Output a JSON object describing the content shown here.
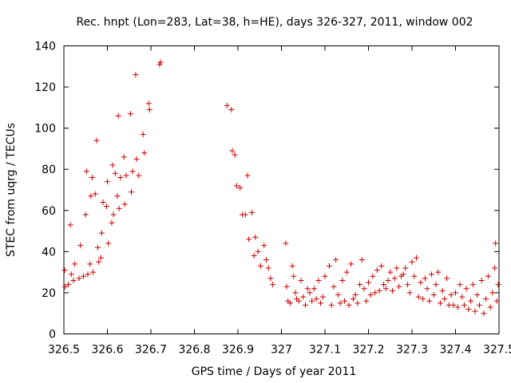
{
  "chart_data": {
    "type": "scatter",
    "title": "Rec. hnpt (Lon=283, Lat=38, h=HE), days 326-327, 2011, window 002",
    "xlabel": "GPS time / Days of year 2011",
    "ylabel": "STEC from uqrg / TECUs",
    "xlim": [
      326.5,
      327.5
    ],
    "ylim": [
      0,
      140
    ],
    "xticks": [
      326.5,
      326.6,
      326.7,
      326.8,
      326.9,
      327,
      327.1,
      327.2,
      327.3,
      327.4,
      327.5
    ],
    "xtick_labels": [
      "326.5",
      "326.6",
      "326.7",
      "326.8",
      "326.9",
      "327",
      "327.1",
      "327.2",
      "327.3",
      "327.4",
      "327.5"
    ],
    "yticks": [
      0,
      20,
      40,
      60,
      80,
      100,
      120,
      140
    ],
    "ytick_labels": [
      "0",
      "20",
      "40",
      "60",
      "80",
      "100",
      "120",
      "140"
    ],
    "grid": false,
    "marker": "+",
    "color": "#cc0000",
    "series": [
      {
        "points": [
          [
            326.502,
            31
          ],
          [
            326.503,
            23
          ],
          [
            326.51,
            24
          ],
          [
            326.515,
            53
          ],
          [
            326.517,
            29
          ],
          [
            326.522,
            26
          ],
          [
            326.525,
            34
          ],
          [
            326.535,
            27
          ],
          [
            326.538,
            43
          ],
          [
            326.545,
            28
          ],
          [
            326.55,
            58
          ],
          [
            326.552,
            79
          ],
          [
            326.555,
            29
          ],
          [
            326.56,
            34
          ],
          [
            326.562,
            67
          ],
          [
            326.565,
            76
          ],
          [
            326.567,
            30
          ],
          [
            326.572,
            68
          ],
          [
            326.575,
            94
          ],
          [
            326.578,
            42
          ],
          [
            326.58,
            35
          ],
          [
            326.585,
            37
          ],
          [
            326.587,
            49
          ],
          [
            326.59,
            64
          ],
          [
            326.598,
            62
          ],
          [
            326.6,
            74
          ],
          [
            326.602,
            44
          ],
          [
            326.61,
            54
          ],
          [
            326.612,
            82
          ],
          [
            326.614,
            58
          ],
          [
            326.618,
            78
          ],
          [
            326.623,
            67
          ],
          [
            326.625,
            106
          ],
          [
            326.627,
            61
          ],
          [
            326.63,
            76
          ],
          [
            326.638,
            86
          ],
          [
            326.64,
            63
          ],
          [
            326.643,
            77
          ],
          [
            326.653,
            107
          ],
          [
            326.655,
            69
          ],
          [
            326.658,
            79
          ],
          [
            326.665,
            126
          ],
          [
            326.667,
            85
          ],
          [
            326.672,
            77
          ],
          [
            326.682,
            97
          ],
          [
            326.685,
            88
          ],
          [
            326.695,
            112
          ],
          [
            326.697,
            109
          ],
          [
            326.72,
            131
          ],
          [
            326.722,
            132
          ],
          [
            326.875,
            111
          ],
          [
            326.885,
            109
          ],
          [
            326.887,
            89
          ],
          [
            326.893,
            87
          ],
          [
            326.897,
            72
          ],
          [
            326.905,
            71
          ],
          [
            326.91,
            58
          ],
          [
            326.917,
            58
          ],
          [
            326.922,
            77
          ],
          [
            326.925,
            46
          ],
          [
            326.932,
            59
          ],
          [
            326.937,
            38
          ],
          [
            326.94,
            47
          ],
          [
            326.946,
            40
          ],
          [
            326.952,
            33
          ],
          [
            326.96,
            43
          ],
          [
            326.965,
            36
          ],
          [
            326.97,
            32
          ],
          [
            326.975,
            27
          ],
          [
            326.98,
            24
          ],
          [
            327.01,
            44
          ],
          [
            327.012,
            23
          ],
          [
            327.015,
            16
          ],
          [
            327.02,
            15
          ],
          [
            327.025,
            33
          ],
          [
            327.028,
            28
          ],
          [
            327.032,
            20
          ],
          [
            327.035,
            17
          ],
          [
            327.04,
            16
          ],
          [
            327.045,
            26
          ],
          [
            327.05,
            18
          ],
          [
            327.055,
            14
          ],
          [
            327.06,
            22
          ],
          [
            327.065,
            20
          ],
          [
            327.07,
            16
          ],
          [
            327.075,
            22
          ],
          [
            327.08,
            17
          ],
          [
            327.085,
            26
          ],
          [
            327.09,
            15
          ],
          [
            327.095,
            18
          ],
          [
            327.1,
            28
          ],
          [
            327.11,
            33
          ],
          [
            327.115,
            14
          ],
          [
            327.12,
            23
          ],
          [
            327.125,
            36
          ],
          [
            327.13,
            19
          ],
          [
            327.135,
            15
          ],
          [
            327.14,
            26
          ],
          [
            327.145,
            16
          ],
          [
            327.15,
            30
          ],
          [
            327.155,
            14
          ],
          [
            327.16,
            34
          ],
          [
            327.165,
            17
          ],
          [
            327.17,
            19
          ],
          [
            327.175,
            15
          ],
          [
            327.18,
            24
          ],
          [
            327.185,
            36
          ],
          [
            327.19,
            22
          ],
          [
            327.195,
            16
          ],
          [
            327.2,
            25
          ],
          [
            327.205,
            19
          ],
          [
            327.21,
            28
          ],
          [
            327.215,
            20
          ],
          [
            327.22,
            31
          ],
          [
            327.225,
            21
          ],
          [
            327.23,
            33
          ],
          [
            327.235,
            24
          ],
          [
            327.24,
            22
          ],
          [
            327.245,
            26
          ],
          [
            327.25,
            30
          ],
          [
            327.255,
            21
          ],
          [
            327.26,
            27
          ],
          [
            327.265,
            32
          ],
          [
            327.27,
            23
          ],
          [
            327.275,
            28
          ],
          [
            327.28,
            29
          ],
          [
            327.285,
            32
          ],
          [
            327.29,
            24
          ],
          [
            327.295,
            20
          ],
          [
            327.3,
            35
          ],
          [
            327.305,
            28
          ],
          [
            327.31,
            37
          ],
          [
            327.315,
            18
          ],
          [
            327.32,
            25
          ],
          [
            327.325,
            17
          ],
          [
            327.33,
            27
          ],
          [
            327.335,
            22
          ],
          [
            327.34,
            16
          ],
          [
            327.345,
            29
          ],
          [
            327.35,
            19
          ],
          [
            327.355,
            24
          ],
          [
            327.36,
            30
          ],
          [
            327.365,
            15
          ],
          [
            327.37,
            21
          ],
          [
            327.375,
            17
          ],
          [
            327.38,
            27
          ],
          [
            327.385,
            14
          ],
          [
            327.39,
            19
          ],
          [
            327.395,
            14
          ],
          [
            327.4,
            20
          ],
          [
            327.405,
            13
          ],
          [
            327.41,
            24
          ],
          [
            327.415,
            18
          ],
          [
            327.42,
            14
          ],
          [
            327.425,
            22
          ],
          [
            327.43,
            12
          ],
          [
            327.435,
            16
          ],
          [
            327.44,
            24
          ],
          [
            327.445,
            11
          ],
          [
            327.45,
            19
          ],
          [
            327.455,
            14
          ],
          [
            327.46,
            26
          ],
          [
            327.465,
            10
          ],
          [
            327.47,
            17
          ],
          [
            327.475,
            28
          ],
          [
            327.48,
            13
          ],
          [
            327.485,
            20
          ],
          [
            327.49,
            32
          ],
          [
            327.492,
            44
          ],
          [
            327.495,
            16
          ],
          [
            327.498,
            24
          ]
        ]
      }
    ]
  }
}
